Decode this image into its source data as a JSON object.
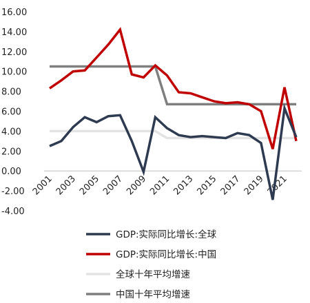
{
  "chart_data": {
    "type": "line",
    "title": "",
    "xlabel": "",
    "ylabel": "",
    "ylim": [
      -4,
      16
    ],
    "yticks": [
      "16.00",
      "14.00",
      "12.00",
      "10.00",
      "8.00",
      "6.00",
      "4.00",
      "2.00",
      "0.00",
      "-2.00",
      "-4.00"
    ],
    "x": [
      2001,
      2002,
      2003,
      2004,
      2005,
      2006,
      2007,
      2008,
      2009,
      2010,
      2011,
      2012,
      2013,
      2014,
      2015,
      2016,
      2017,
      2018,
      2019,
      2020,
      2021,
      2022
    ],
    "xticks": [
      "2001",
      "2003",
      "2005",
      "2007",
      "2009",
      "2011",
      "2013",
      "2015",
      "2017",
      "2019",
      "2021"
    ],
    "grid": false,
    "legend_position": "bottom",
    "series": [
      {
        "name": "GDP:实际同比增长:全球",
        "color": "#2d3a4f",
        "values": [
          2.5,
          3.0,
          4.4,
          5.4,
          4.9,
          5.5,
          5.6,
          3.0,
          -0.1,
          5.4,
          4.3,
          3.6,
          3.4,
          3.5,
          3.4,
          3.3,
          3.8,
          3.6,
          2.8,
          -2.9,
          6.3,
          3.4
        ]
      },
      {
        "name": "GDP:实际同比增长:中国",
        "color": "#c00000",
        "values": [
          8.3,
          9.1,
          10.0,
          10.1,
          11.4,
          12.7,
          14.2,
          9.7,
          9.4,
          10.6,
          9.6,
          7.9,
          7.8,
          7.4,
          7.0,
          6.8,
          6.9,
          6.7,
          6.0,
          2.2,
          8.4,
          3.0
        ]
      },
      {
        "name": "全球十年平均增速",
        "color": "#e3e3e3",
        "values": [
          4.0,
          4.0,
          4.0,
          4.0,
          4.0,
          4.0,
          4.0,
          4.0,
          4.0,
          4.0,
          3.3,
          3.3,
          3.3,
          3.3,
          3.3,
          3.3,
          3.3,
          3.3,
          3.3,
          3.3,
          3.3,
          3.3
        ]
      },
      {
        "name": "中国十年平均增速",
        "color": "#7f7f7f",
        "values": [
          10.5,
          10.5,
          10.5,
          10.5,
          10.5,
          10.5,
          10.5,
          10.5,
          10.5,
          10.5,
          6.7,
          6.7,
          6.7,
          6.7,
          6.7,
          6.7,
          6.7,
          6.7,
          6.7,
          6.7,
          6.7,
          6.7
        ]
      }
    ]
  }
}
